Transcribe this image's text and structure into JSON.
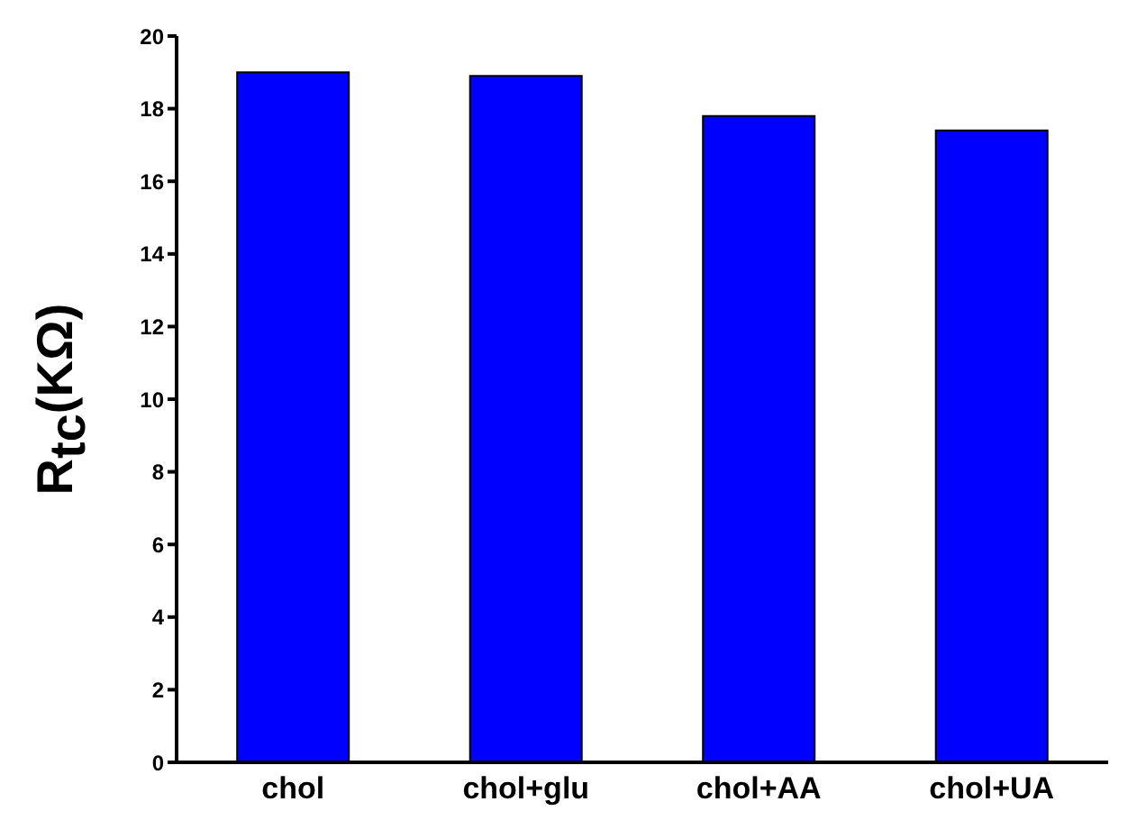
{
  "chart_data": {
    "type": "bar",
    "ylabel": "R$_{tc}$(KΩ)",
    "categories": [
      "chol",
      "chol+glu",
      "chol+AA",
      "chol+UA"
    ],
    "values": [
      19.0,
      18.9,
      17.8,
      17.4
    ],
    "color": "#0000ff",
    "ylim": [
      0,
      20
    ],
    "yticks": [
      0,
      2,
      4,
      6,
      8,
      10,
      12,
      14,
      16,
      18,
      20
    ],
    "grid": false,
    "legend": false
  }
}
